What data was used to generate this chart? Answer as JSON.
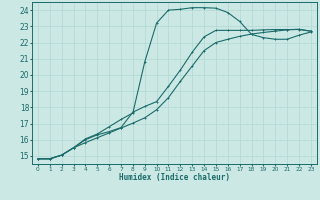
{
  "xlabel": "Humidex (Indice chaleur)",
  "bg_color": "#cce8e4",
  "line_color": "#1a6b6b",
  "grid_color": "#b0d8d4",
  "xlim": [
    -0.5,
    23.5
  ],
  "ylim": [
    14.5,
    24.5
  ],
  "xticks": [
    0,
    1,
    2,
    3,
    4,
    5,
    6,
    7,
    8,
    9,
    10,
    11,
    12,
    13,
    14,
    15,
    16,
    17,
    18,
    19,
    20,
    21,
    22,
    23
  ],
  "yticks": [
    15,
    16,
    17,
    18,
    19,
    20,
    21,
    22,
    23,
    24
  ],
  "curve1_x": [
    0,
    1,
    2,
    3,
    4,
    5,
    6,
    7,
    8,
    9,
    10,
    11,
    12,
    13,
    14,
    15,
    16,
    17,
    18,
    19,
    20,
    21,
    22,
    23
  ],
  "curve1_y": [
    14.82,
    14.82,
    15.05,
    15.5,
    16.05,
    16.35,
    16.8,
    17.25,
    17.65,
    20.8,
    23.2,
    24.0,
    24.05,
    24.15,
    24.15,
    24.12,
    23.85,
    23.3,
    22.5,
    22.3,
    22.2,
    22.2,
    22.45,
    22.65
  ],
  "curve2_x": [
    0,
    1,
    2,
    3,
    4,
    5,
    6,
    7,
    8,
    9,
    10,
    11,
    12,
    13,
    14,
    15,
    16,
    17,
    18,
    19,
    20,
    21,
    22,
    23
  ],
  "curve2_y": [
    14.82,
    14.82,
    15.05,
    15.5,
    16.0,
    16.3,
    16.5,
    16.75,
    17.7,
    18.05,
    18.35,
    19.3,
    20.3,
    21.4,
    22.35,
    22.75,
    22.75,
    22.75,
    22.75,
    22.78,
    22.8,
    22.8,
    22.8,
    22.7
  ],
  "curve3_x": [
    0,
    1,
    2,
    3,
    4,
    5,
    6,
    7,
    8,
    9,
    10,
    11,
    12,
    13,
    14,
    15,
    16,
    17,
    18,
    19,
    20,
    21,
    22,
    23
  ],
  "curve3_y": [
    14.82,
    14.82,
    15.05,
    15.5,
    15.82,
    16.12,
    16.42,
    16.72,
    17.02,
    17.35,
    17.85,
    18.6,
    19.6,
    20.55,
    21.5,
    22.0,
    22.2,
    22.38,
    22.52,
    22.62,
    22.7,
    22.78,
    22.82,
    22.7
  ]
}
